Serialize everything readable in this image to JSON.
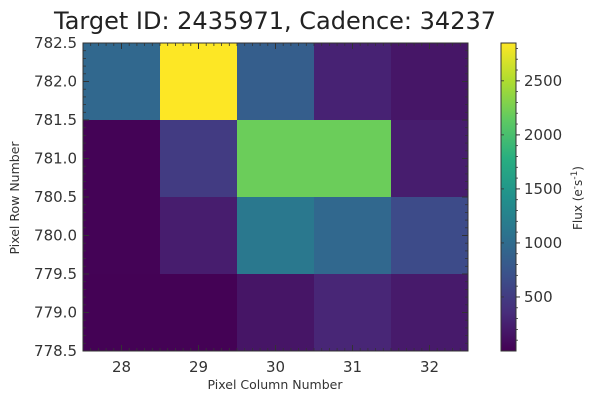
{
  "chart_data": {
    "type": "heatmap",
    "title": "Target ID: 2435971, Cadence: 34237",
    "xlabel": "Pixel Column Number",
    "ylabel": "Pixel Row Number",
    "xlim": [
      27.5,
      32.5
    ],
    "ylim": [
      778.5,
      782.5
    ],
    "x_ticks": [
      28,
      29,
      30,
      31,
      32
    ],
    "y_ticks": [
      778.5,
      779.0,
      779.5,
      780.0,
      780.5,
      781.0,
      781.5,
      782.0,
      782.5
    ],
    "y_tick_labels": [
      "778.5",
      "779.0",
      "779.5",
      "780.0",
      "780.5",
      "781.0",
      "781.5",
      "782.0",
      "782.5"
    ],
    "x_centers": [
      28,
      29,
      30,
      31,
      32
    ],
    "row_bands": [
      {
        "from": 781.5,
        "to": 782.5,
        "values": [
          950,
          2850,
          850,
          270,
          170
        ]
      },
      {
        "from": 780.5,
        "to": 781.5,
        "values": [
          20,
          500,
          2200,
          2200,
          230
        ]
      },
      {
        "from": 779.5,
        "to": 780.5,
        "values": [
          20,
          230,
          1150,
          950,
          650
        ]
      },
      {
        "from": 778.5,
        "to": 779.5,
        "values": [
          10,
          10,
          160,
          300,
          200
        ]
      }
    ],
    "colorbar": {
      "label": "Flux ($e^{-}s^{-1}$)",
      "colormap": "viridis",
      "vmin": 0,
      "vmax": 2850,
      "ticks": [
        500,
        1000,
        1500,
        2000,
        2500
      ]
    },
    "grid": false
  }
}
